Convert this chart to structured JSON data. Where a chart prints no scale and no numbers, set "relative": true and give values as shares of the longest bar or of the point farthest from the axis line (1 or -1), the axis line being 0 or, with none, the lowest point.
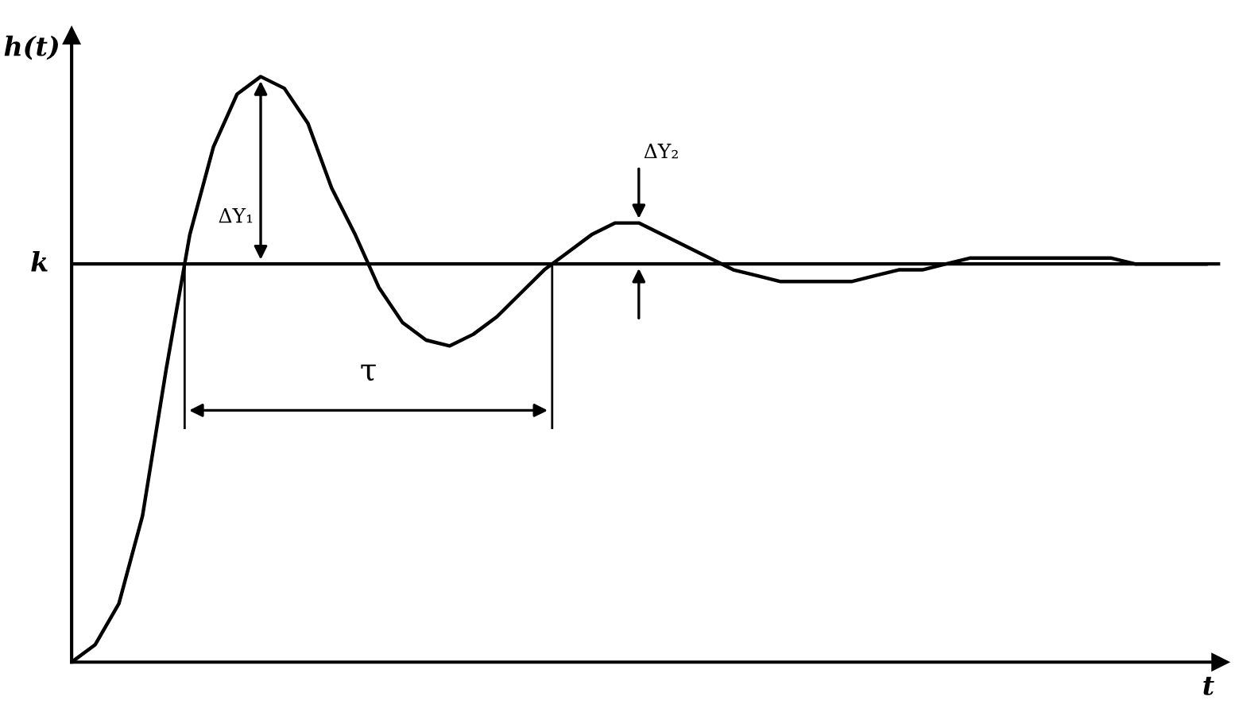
{
  "chart_data": {
    "type": "line",
    "relative": true,
    "color": "#000000",
    "line_style": "solid",
    "xlabel": "t",
    "ylabel": "h(t)",
    "categories": [
      null,
      null,
      null,
      null,
      null,
      null,
      null,
      null,
      null,
      null,
      null,
      null,
      null,
      null,
      null,
      null,
      null,
      null,
      null,
      null,
      null,
      null,
      null,
      null,
      null,
      null,
      null,
      null,
      null,
      null,
      null,
      null,
      null,
      null,
      null,
      null,
      null,
      null,
      null,
      null,
      null,
      null,
      null,
      null,
      null,
      null,
      null,
      null,
      null
    ],
    "values": [
      0,
      0.03,
      0.1,
      0.25,
      0.5,
      0.73,
      0.88,
      0.97,
      1.0,
      0.98,
      0.92,
      0.81,
      0.73,
      0.64,
      0.58,
      0.55,
      0.54,
      0.56,
      0.59,
      0.63,
      0.67,
      0.7,
      0.73,
      0.75,
      0.75,
      0.73,
      0.71,
      0.69,
      0.67,
      0.66,
      0.65,
      0.65,
      0.65,
      0.65,
      0.66,
      0.67,
      0.67,
      0.68,
      0.69,
      0.69,
      0.69,
      0.69,
      0.69,
      0.69,
      0.69,
      0.68,
      0.68,
      0.68,
      0.68
    ],
    "ref_lines": [
      {
        "axis": "y",
        "value": 0.68,
        "label": "k"
      }
    ],
    "annotations": [
      "ΔY₁",
      "ΔY₂",
      "τ"
    ]
  }
}
